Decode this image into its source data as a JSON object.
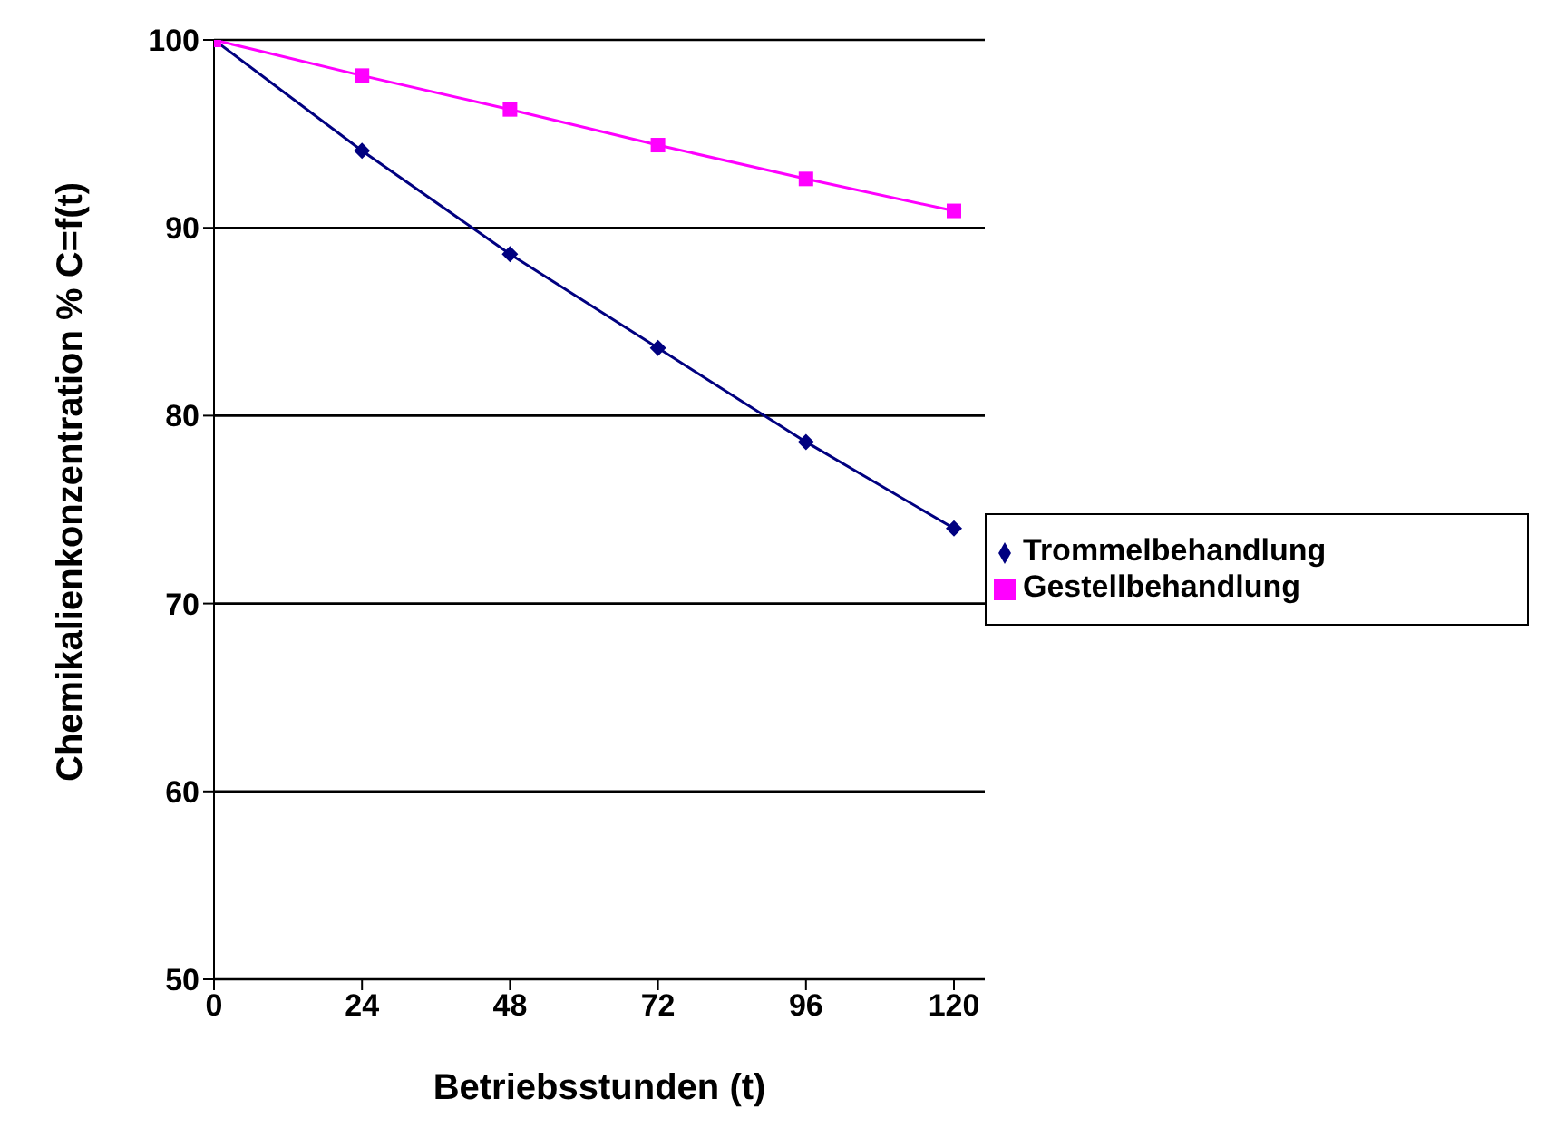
{
  "chart_data": {
    "type": "line",
    "xlabel": "Betriebsstunden (t)",
    "ylabel": "Chemikalienkonzentration % C=f(t)",
    "x": [
      0,
      24,
      48,
      72,
      96,
      120
    ],
    "series": [
      {
        "name": "Trommelbehandlung",
        "color": "#000080",
        "marker": "diamond",
        "values": [
          100,
          94.1,
          88.6,
          83.6,
          78.6,
          74.0
        ]
      },
      {
        "name": "Gestellbehandlung",
        "color": "#ff00ff",
        "marker": "square",
        "values": [
          100,
          98.1,
          96.3,
          94.4,
          92.6,
          90.9
        ]
      }
    ],
    "xlim": [
      0,
      125
    ],
    "xticks": [
      0,
      24,
      48,
      72,
      96,
      120
    ],
    "ylim": [
      50,
      100
    ],
    "yticks": [
      50,
      60,
      70,
      80,
      90,
      100
    ],
    "grid": "y",
    "legend": "right",
    "line_style": "solid"
  }
}
